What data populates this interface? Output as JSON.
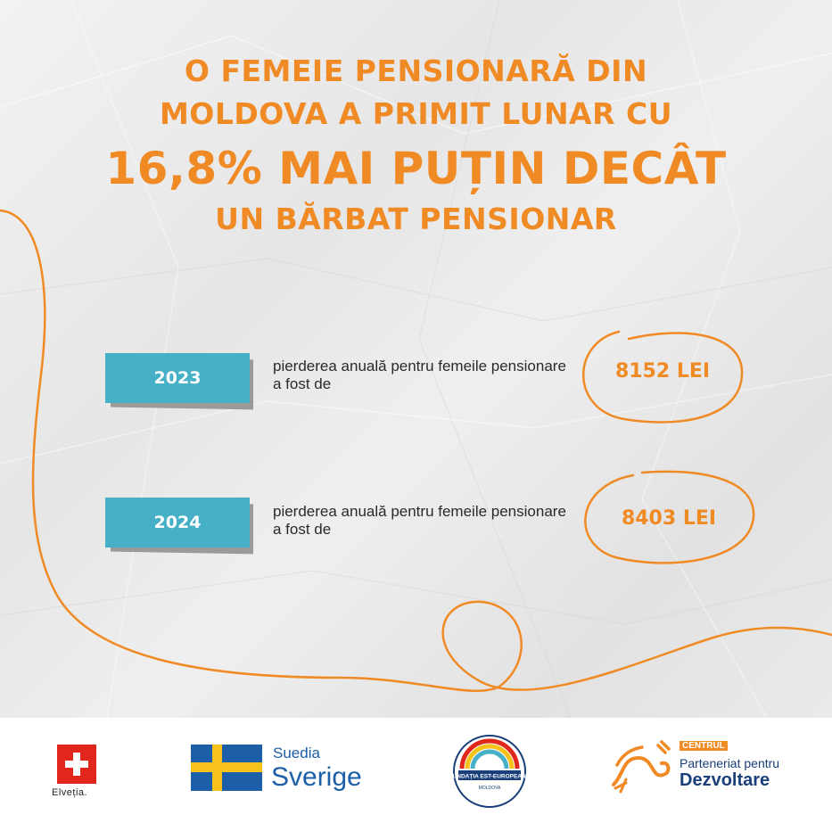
{
  "headline": {
    "line1": "O FEMEIE PENSIONARĂ DIN",
    "line2": "MOLDOVA A PRIMIT LUNAR CU",
    "line3": "16,8% MAI PUȚIN DECÂT",
    "line4": "UN BĂRBAT PENSIONAR"
  },
  "rows": [
    {
      "year": "2023",
      "description": "pierderea anuală pentru femeile pensionare a fost de",
      "amount": "8152 LEI"
    },
    {
      "year": "2024",
      "description": "pierderea anuală pentru femeile pensionare a fost de",
      "amount": "8403 LEI"
    }
  ],
  "footer": {
    "switzerland": {
      "label": "Elveția."
    },
    "sweden": {
      "line1": "Suedia",
      "line2": "Sverige"
    },
    "fee": {
      "label": "FUNDAȚIA EST-EUROPEANĂ",
      "sublabel": "MOLDOVA"
    },
    "pd": {
      "tag": "CENTRUL",
      "line1": "Parteneriat pentru",
      "line2": "Dezvoltare"
    }
  },
  "colors": {
    "accent": "#f08a24",
    "year_box": "#46b0c7",
    "swiss_red": "#e1261c",
    "swedish_blue": "#1c5fa8",
    "swedish_yellow": "#f7c31a",
    "pd_navy": "#1a3f7a"
  },
  "icons": [
    "swiss-flag-icon",
    "swedish-flag-icon",
    "fee-circle-logo-icon",
    "pd-link-logo-icon"
  ]
}
